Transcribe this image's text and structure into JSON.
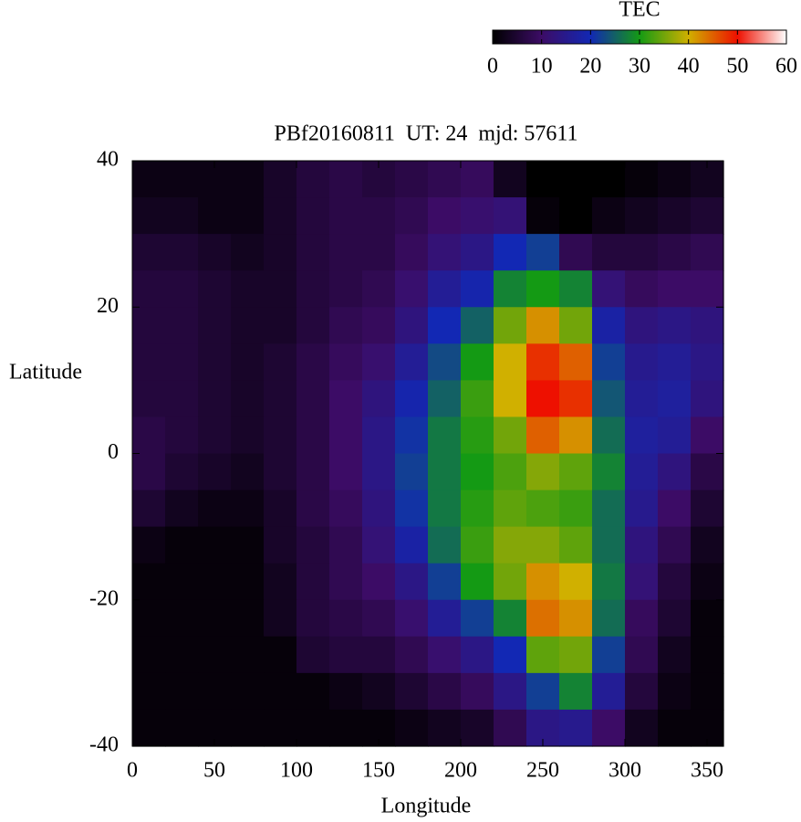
{
  "chart_data": {
    "type": "heatmap",
    "title": "PBf20160811  UT: 24  mjd: 57611",
    "x_label": "Longitude",
    "y_label": "Latitude",
    "colorbar_label": "TEC",
    "x": [
      10,
      30,
      50,
      70,
      90,
      110,
      130,
      150,
      170,
      190,
      210,
      230,
      250,
      270,
      290,
      310,
      330,
      350
    ],
    "y": [
      37.5,
      32.5,
      27.5,
      22.5,
      17.5,
      12.5,
      7.5,
      2.5,
      -2.5,
      -7.5,
      -12.5,
      -17.5,
      -22.5,
      -27.5,
      -32.5,
      -37.5
    ],
    "z": [
      [
        2,
        2,
        2,
        2,
        4,
        6,
        7,
        6,
        7,
        8,
        9,
        3,
        0,
        0,
        0,
        1,
        2,
        3
      ],
      [
        3,
        3,
        2,
        2,
        4,
        6,
        7,
        7,
        8,
        10,
        11,
        12,
        1,
        0,
        2,
        3,
        4,
        5
      ],
      [
        5,
        5,
        4,
        3,
        4,
        6,
        7,
        7,
        9,
        12,
        14,
        20,
        22,
        8,
        6,
        6,
        7,
        8
      ],
      [
        6,
        6,
        5,
        4,
        4,
        6,
        7,
        8,
        11,
        16,
        19,
        28,
        30,
        28,
        12,
        9,
        10,
        10
      ],
      [
        6,
        6,
        5,
        4,
        4,
        6,
        8,
        9,
        13,
        20,
        25,
        35,
        42,
        35,
        18,
        13,
        14,
        13
      ],
      [
        6,
        6,
        5,
        4,
        5,
        7,
        9,
        11,
        16,
        23,
        30,
        40,
        48,
        45,
        22,
        15,
        16,
        14
      ],
      [
        6,
        6,
        5,
        4,
        5,
        7,
        10,
        13,
        19,
        25,
        32,
        40,
        50,
        48,
        24,
        16,
        17,
        13
      ],
      [
        7,
        6,
        5,
        4,
        5,
        7,
        10,
        14,
        21,
        27,
        31,
        35,
        45,
        42,
        26,
        17,
        16,
        10
      ],
      [
        7,
        5,
        4,
        3,
        5,
        7,
        10,
        14,
        22,
        27,
        30,
        33,
        36,
        34,
        28,
        16,
        13,
        7
      ],
      [
        5,
        3,
        2,
        2,
        4,
        7,
        9,
        13,
        21,
        27,
        31,
        34,
        33,
        32,
        26,
        15,
        10,
        5
      ],
      [
        2,
        1,
        1,
        1,
        4,
        6,
        8,
        12,
        18,
        26,
        32,
        36,
        36,
        34,
        26,
        13,
        8,
        3
      ],
      [
        1,
        1,
        1,
        1,
        3,
        6,
        8,
        10,
        14,
        22,
        30,
        35,
        42,
        40,
        27,
        12,
        6,
        2
      ],
      [
        1,
        1,
        1,
        1,
        3,
        6,
        7,
        8,
        11,
        16,
        22,
        28,
        44,
        42,
        26,
        9,
        5,
        1
      ],
      [
        1,
        1,
        1,
        1,
        1,
        5,
        6,
        6,
        8,
        11,
        14,
        20,
        34,
        35,
        22,
        8,
        3,
        1
      ],
      [
        1,
        1,
        1,
        1,
        1,
        1,
        2,
        3,
        5,
        7,
        9,
        14,
        22,
        28,
        16,
        6,
        2,
        1
      ],
      [
        1,
        1,
        1,
        1,
        1,
        1,
        1,
        1,
        2,
        3,
        4,
        8,
        14,
        15,
        10,
        3,
        1,
        1
      ]
    ],
    "xlim": [
      0,
      360
    ],
    "xticks": [
      0,
      50,
      100,
      150,
      200,
      250,
      300,
      350
    ],
    "ylim": [
      -40,
      40
    ],
    "yticks": [
      -40,
      -20,
      0,
      20,
      40
    ],
    "zlim": [
      0,
      60
    ],
    "zticks": [
      0,
      10,
      20,
      30,
      40,
      50,
      60
    ],
    "colors": [
      "#000000",
      "#3c0c66",
      "#1228b4",
      "#149a14",
      "#d0b000",
      "#ee1000",
      "#ffffff"
    ]
  }
}
